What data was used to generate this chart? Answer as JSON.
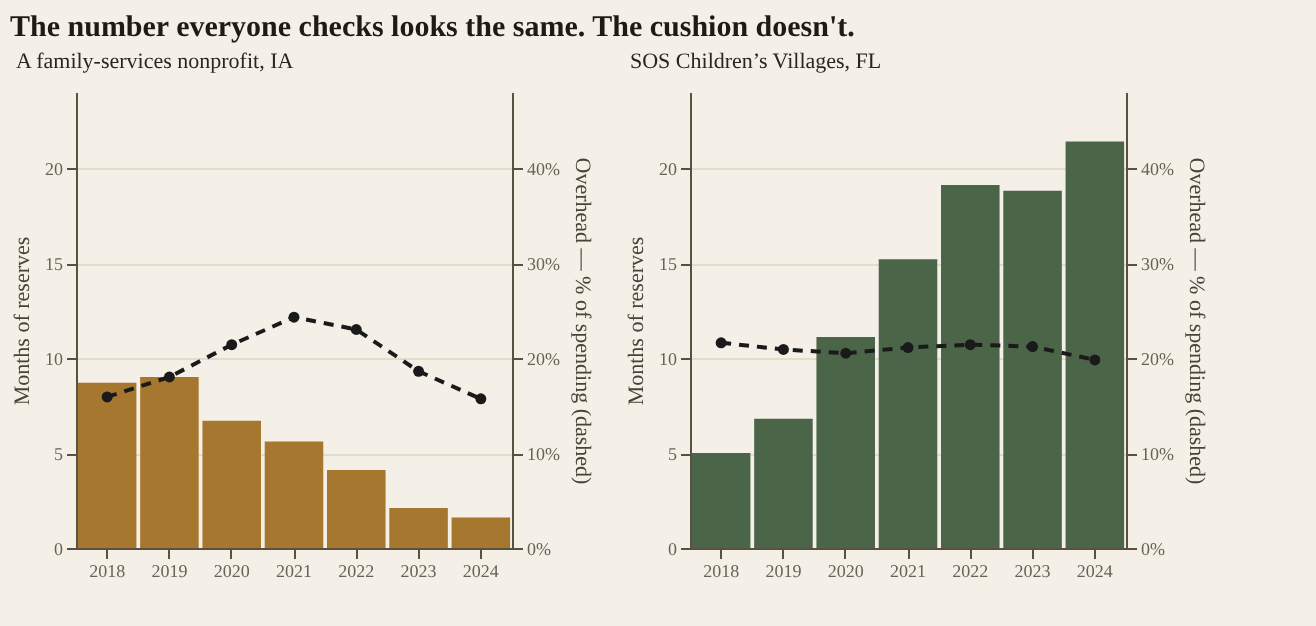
{
  "chart_data": [
    {
      "type": "bar",
      "title": "The number everyone checks looks the same. The cushion doesn't.",
      "subtitle": "A family-services nonprofit, IA",
      "ylabel": "Months of reserves",
      "y2label": "Overhead — % of spending (dashed)",
      "categories": [
        "2018",
        "2019",
        "2020",
        "2021",
        "2022",
        "2023",
        "2024"
      ],
      "series": [
        {
          "color": "#a6772e",
          "values": [
            8.7,
            9.0,
            6.7,
            5.6,
            4.1,
            2.1,
            1.6
          ]
        },
        {
          "type": "line",
          "axis": "y2",
          "color": "#1a1a1a",
          "line_style": "dashed",
          "marker": "circle",
          "values": [
            15.9,
            18.0,
            21.4,
            24.3,
            23.0,
            18.6,
            15.7
          ]
        }
      ],
      "ylim": [
        0,
        24
      ],
      "yticks": [
        0,
        5,
        10,
        15,
        20
      ],
      "y2lim": [
        0,
        48
      ],
      "y2ticks": [
        {
          "value": 0,
          "label": "0%"
        },
        {
          "value": 10,
          "label": "10%"
        },
        {
          "value": 20,
          "label": "20%"
        },
        {
          "value": 30,
          "label": "30%"
        },
        {
          "value": 40,
          "label": "40%"
        }
      ],
      "grid": "y"
    },
    {
      "type": "bar",
      "subtitle": "SOS Children’s Villages, FL",
      "ylabel": "Months of reserves",
      "y2label": "Overhead — % of spending (dashed)",
      "categories": [
        "2018",
        "2019",
        "2020",
        "2021",
        "2022",
        "2023",
        "2024"
      ],
      "series": [
        {
          "color": "#4b6549",
          "values": [
            5.0,
            6.8,
            11.1,
            15.2,
            19.1,
            18.8,
            21.4
          ]
        },
        {
          "type": "line",
          "axis": "y2",
          "color": "#1a1a1a",
          "line_style": "dashed",
          "marker": "circle",
          "values": [
            21.6,
            20.9,
            20.5,
            21.1,
            21.4,
            21.2,
            19.8
          ]
        }
      ],
      "ylim": [
        0,
        24
      ],
      "yticks": [
        0,
        5,
        10,
        15,
        20
      ],
      "y2lim": [
        0,
        48
      ],
      "y2ticks": [
        {
          "value": 0,
          "label": "0%"
        },
        {
          "value": 10,
          "label": "10%"
        },
        {
          "value": 20,
          "label": "20%"
        },
        {
          "value": 30,
          "label": "30%"
        },
        {
          "value": 40,
          "label": "40%"
        }
      ],
      "grid": "y"
    }
  ]
}
